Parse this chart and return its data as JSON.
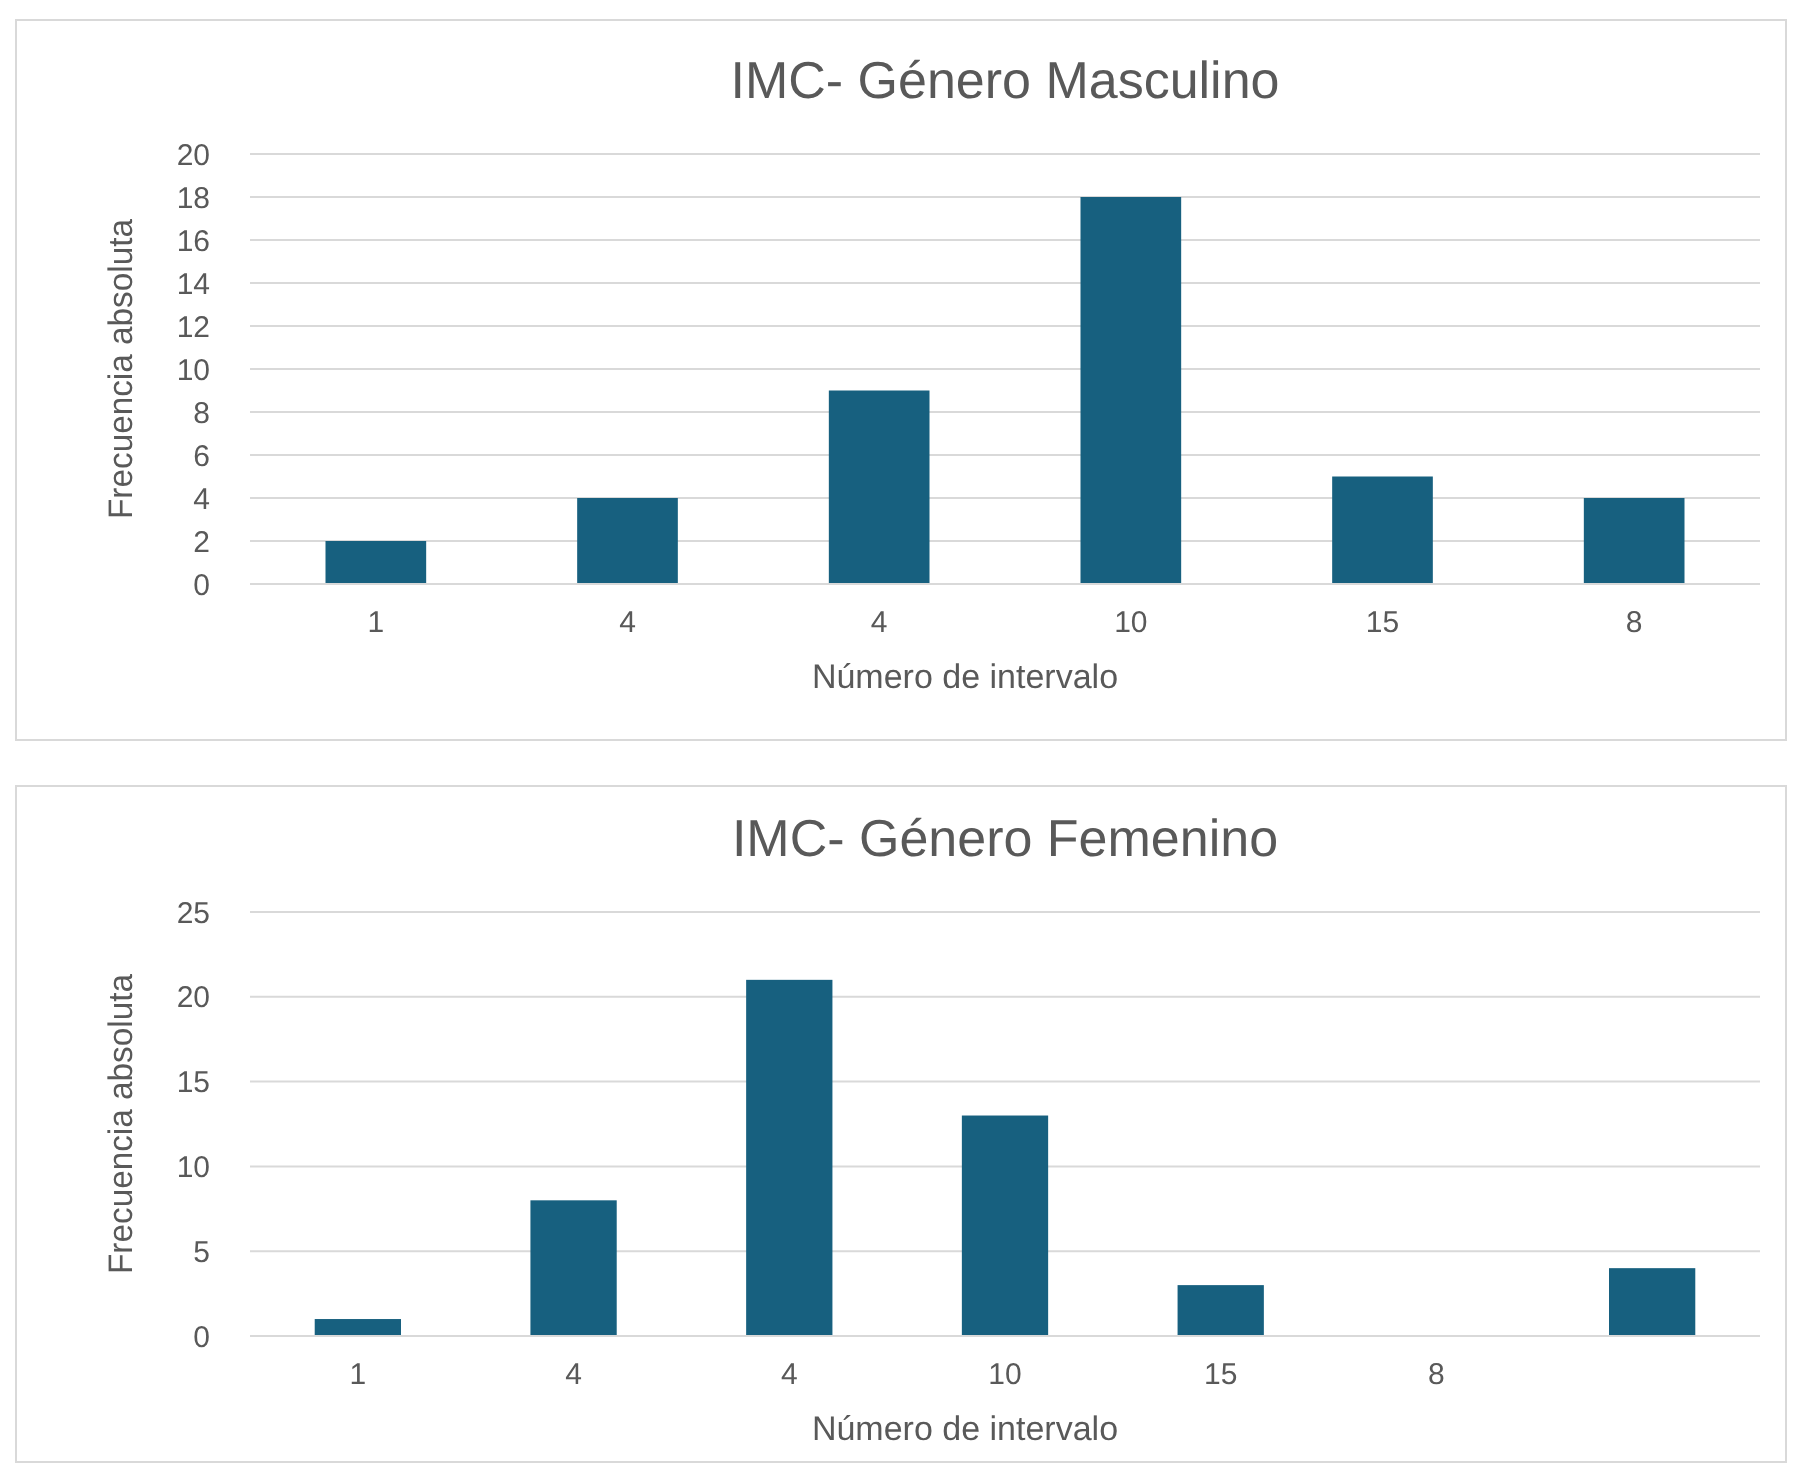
{
  "chart_data": [
    {
      "type": "bar",
      "title": "IMC- Género Masculino",
      "xlabel": "Número de intervalo",
      "ylabel": "Frecuencia absoluta",
      "categories": [
        "1",
        "4",
        "4",
        "10",
        "15",
        "8"
      ],
      "values": [
        2,
        4,
        9,
        18,
        5,
        4
      ],
      "color": "#17607f",
      "ylim": [
        0,
        20
      ],
      "yticks": [
        0,
        2,
        4,
        6,
        8,
        10,
        12,
        14,
        16,
        18,
        20
      ],
      "grid": "y"
    },
    {
      "type": "bar",
      "title": "IMC- Género Femenino",
      "xlabel": "Número de intervalo",
      "ylabel": "Frecuencia absoluta",
      "categories": [
        "1",
        "4",
        "4",
        "10",
        "15",
        "8",
        null
      ],
      "values": [
        1,
        8,
        21,
        13,
        3,
        0,
        4
      ],
      "color": "#17607f",
      "ylim": [
        0,
        25
      ],
      "yticks": [
        0,
        5,
        10,
        15,
        20,
        25
      ],
      "grid": "y"
    }
  ]
}
